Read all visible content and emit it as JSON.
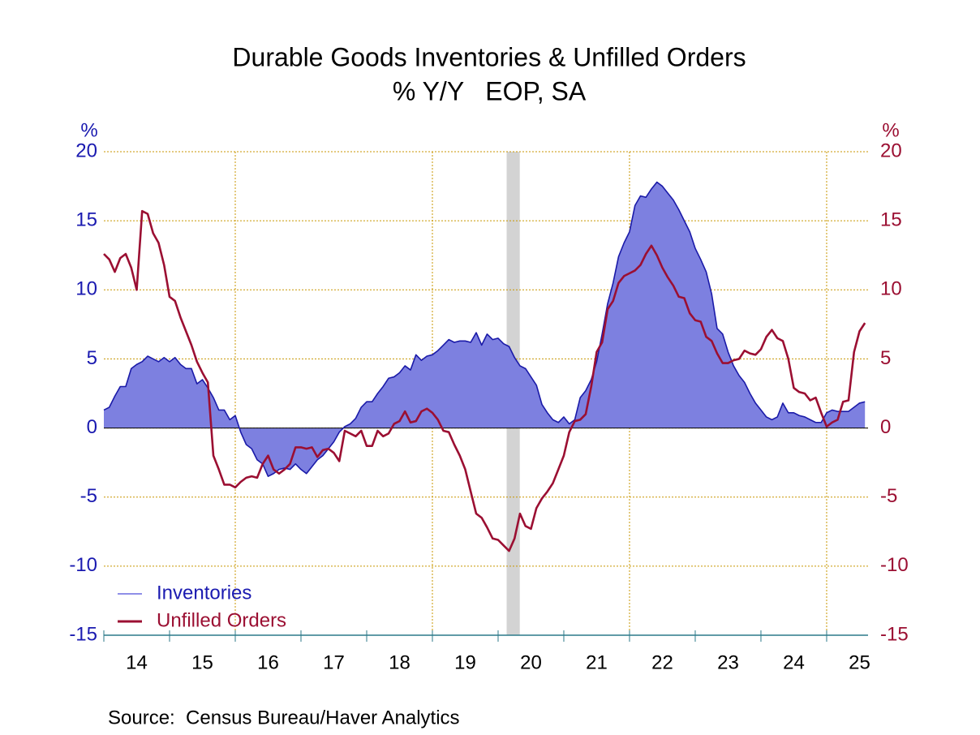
{
  "chart_data": {
    "type": "line",
    "title": "Durable Goods Inventories & Unfilled Orders",
    "subtitle": "% Y/Y   EOP, SA",
    "y_label": "%",
    "y2_label": "%",
    "source": "Source:  Census Bureau/Haver Analytics",
    "xlim": [
      2014,
      2025.63
    ],
    "xticks": [
      {
        "value": 2014.5,
        "label": "14"
      },
      {
        "value": 2015.5,
        "label": "15"
      },
      {
        "value": 2016.5,
        "label": "16"
      },
      {
        "value": 2017.5,
        "label": "17"
      },
      {
        "value": 2018.5,
        "label": "18"
      },
      {
        "value": 2019.5,
        "label": "19"
      },
      {
        "value": 2020.5,
        "label": "20"
      },
      {
        "value": 2021.5,
        "label": "21"
      },
      {
        "value": 2022.5,
        "label": "22"
      },
      {
        "value": 2023.5,
        "label": "23"
      },
      {
        "value": 2024.5,
        "label": "24"
      },
      {
        "value": 2025.5,
        "label": "25"
      }
    ],
    "xgrid": [
      2016,
      2019,
      2022,
      2025
    ],
    "ylim": [
      -15,
      20
    ],
    "yticks": [
      -15,
      -10,
      -5,
      0,
      5,
      10,
      15,
      20
    ],
    "y2lim": [
      -15,
      20
    ],
    "y2ticks": [
      -15,
      -10,
      -5,
      0,
      5,
      10,
      15,
      20
    ],
    "grid": true,
    "recessions": [
      [
        2020.13,
        2020.33
      ]
    ],
    "legend": "lower left",
    "x": [
      2014,
      2014.083,
      2014.167,
      2014.25,
      2014.333,
      2014.417,
      2014.5,
      2014.583,
      2014.667,
      2014.75,
      2014.833,
      2014.917,
      2015,
      2015.083,
      2015.167,
      2015.25,
      2015.333,
      2015.417,
      2015.5,
      2015.583,
      2015.667,
      2015.75,
      2015.833,
      2015.917,
      2016,
      2016.083,
      2016.167,
      2016.25,
      2016.333,
      2016.417,
      2016.5,
      2016.583,
      2016.667,
      2016.75,
      2016.833,
      2016.917,
      2017,
      2017.083,
      2017.167,
      2017.25,
      2017.333,
      2017.417,
      2017.5,
      2017.583,
      2017.667,
      2017.75,
      2017.833,
      2017.917,
      2018,
      2018.083,
      2018.167,
      2018.25,
      2018.333,
      2018.417,
      2018.5,
      2018.583,
      2018.667,
      2018.75,
      2018.833,
      2018.917,
      2019,
      2019.083,
      2019.167,
      2019.25,
      2019.333,
      2019.417,
      2019.5,
      2019.583,
      2019.667,
      2019.75,
      2019.833,
      2019.917,
      2020,
      2020.083,
      2020.167,
      2020.25,
      2020.333,
      2020.417,
      2020.5,
      2020.583,
      2020.667,
      2020.75,
      2020.833,
      2020.917,
      2021,
      2021.083,
      2021.167,
      2021.25,
      2021.333,
      2021.417,
      2021.5,
      2021.583,
      2021.667,
      2021.75,
      2021.833,
      2021.917,
      2022,
      2022.083,
      2022.167,
      2022.25,
      2022.333,
      2022.417,
      2022.5,
      2022.583,
      2022.667,
      2022.75,
      2022.833,
      2022.917,
      2023,
      2023.083,
      2023.167,
      2023.25,
      2023.333,
      2023.417,
      2023.5,
      2023.583,
      2023.667,
      2023.75,
      2023.833,
      2023.917,
      2024,
      2024.083,
      2024.167,
      2024.25,
      2024.333,
      2024.417,
      2024.5,
      2024.583,
      2024.667,
      2024.75,
      2024.833,
      2024.917,
      2025,
      2025.083,
      2025.167,
      2025.25,
      2025.333,
      2025.417,
      2025.5,
      2025.583
    ],
    "series": [
      {
        "name": "Inventories",
        "color": "#1a1aa8",
        "fill": "#7d80e0",
        "area": true,
        "values": [
          1.3,
          1.5,
          2.3,
          3.0,
          3.0,
          4.3,
          4.6,
          4.8,
          5.2,
          5.0,
          4.8,
          5.1,
          4.8,
          5.1,
          4.6,
          4.3,
          4.3,
          3.2,
          3.5,
          2.9,
          2.2,
          1.3,
          1.3,
          0.6,
          0.9,
          -0.3,
          -1.2,
          -1.5,
          -2.3,
          -2.6,
          -3.5,
          -3.3,
          -3.0,
          -2.9,
          -3.0,
          -2.6,
          -3.0,
          -3.3,
          -2.8,
          -2.3,
          -2.0,
          -1.5,
          -1.0,
          -0.3,
          0.1,
          0.3,
          0.7,
          1.5,
          1.9,
          1.9,
          2.5,
          3.0,
          3.6,
          3.7,
          4.0,
          4.5,
          4.2,
          5.3,
          4.9,
          5.2,
          5.3,
          5.6,
          6.0,
          6.4,
          6.2,
          6.3,
          6.3,
          6.2,
          6.9,
          6.0,
          6.8,
          6.4,
          6.5,
          6.1,
          5.9,
          5.1,
          4.5,
          4.3,
          3.7,
          3.1,
          1.7,
          1.1,
          0.6,
          0.4,
          0.8,
          0.3,
          0.6,
          2.2,
          2.7,
          3.5,
          4.8,
          6.8,
          9.0,
          10.5,
          12.4,
          13.4,
          14.2,
          16.1,
          16.8,
          16.7,
          17.3,
          17.8,
          17.5,
          17.0,
          16.5,
          15.8,
          15.0,
          14.2,
          13.0,
          12.2,
          11.3,
          9.7,
          7.2,
          6.8,
          5.5,
          4.5,
          3.8,
          3.3,
          2.5,
          1.8,
          1.3,
          0.8,
          0.6,
          0.8,
          1.8,
          1.1,
          1.1,
          0.9,
          0.8,
          0.6,
          0.4,
          0.4,
          1.1,
          1.3,
          1.2,
          1.2,
          1.2,
          1.5,
          1.8,
          1.9
        ]
      },
      {
        "name": "Unfilled Orders",
        "color": "#9b0f32",
        "axis": "y2",
        "values": [
          12.6,
          12.2,
          11.3,
          12.3,
          12.6,
          11.6,
          10.0,
          15.7,
          15.5,
          14.1,
          13.4,
          11.8,
          9.5,
          9.2,
          8.0,
          7.0,
          6.0,
          4.8,
          4.0,
          3.3,
          -2.0,
          -3.0,
          -4.1,
          -4.1,
          -4.3,
          -3.9,
          -3.6,
          -3.5,
          -3.6,
          -2.6,
          -2.0,
          -3.0,
          -3.3,
          -3.0,
          -2.6,
          -1.4,
          -1.4,
          -1.5,
          -1.4,
          -2.1,
          -1.6,
          -1.5,
          -1.8,
          -2.4,
          -0.2,
          -0.4,
          -0.6,
          -0.2,
          -1.3,
          -1.3,
          -0.2,
          -0.6,
          -0.4,
          0.3,
          0.5,
          1.2,
          0.4,
          0.5,
          1.2,
          1.4,
          1.1,
          0.6,
          -0.2,
          -0.3,
          -1.2,
          -2.0,
          -3.0,
          -4.6,
          -6.2,
          -6.5,
          -7.2,
          -8.0,
          -8.1,
          -8.5,
          -8.9,
          -8.0,
          -6.2,
          -7.1,
          -7.3,
          -5.8,
          -5.1,
          -4.6,
          -4.0,
          -3.0,
          -2.0,
          -0.3,
          0.5,
          0.6,
          1.0,
          3.0,
          5.5,
          6.2,
          8.6,
          9.2,
          10.5,
          11.0,
          11.2,
          11.4,
          11.8,
          12.6,
          13.2,
          12.5,
          11.6,
          10.9,
          10.3,
          9.5,
          9.4,
          8.3,
          7.8,
          7.7,
          6.6,
          6.3,
          5.4,
          4.7,
          4.7,
          4.9,
          5.0,
          5.6,
          5.4,
          5.3,
          5.7,
          6.6,
          7.1,
          6.5,
          6.3,
          5.0,
          2.9,
          2.6,
          2.5,
          2.0,
          2.2,
          1.1,
          0.1,
          0.4,
          0.6,
          1.9,
          2.0,
          5.5,
          7.0,
          7.6
        ]
      }
    ]
  }
}
